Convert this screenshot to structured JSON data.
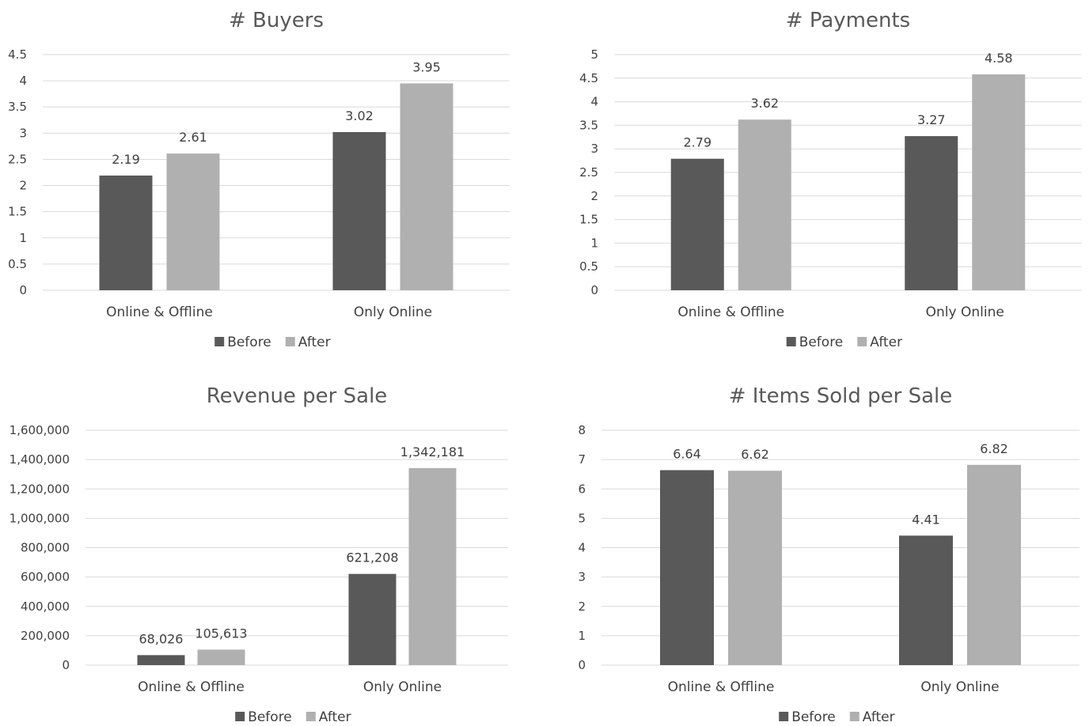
{
  "colors": {
    "before": "#595959",
    "after": "#b0b0b0",
    "grid": "#d9d9d9"
  },
  "chart_data": [
    {
      "type": "bar",
      "title": "# Buyers",
      "categories": [
        "Online & Offline",
        "Only Online"
      ],
      "series": [
        {
          "name": "Before",
          "values": [
            2.19,
            3.02
          ]
        },
        {
          "name": "After",
          "values": [
            2.61,
            3.95
          ]
        }
      ],
      "data_labels": [
        [
          "2.19",
          "3.02"
        ],
        [
          "2.61",
          "3.95"
        ]
      ],
      "ylim": [
        0,
        4.5
      ],
      "yticks": [
        "0",
        "0.5",
        "1",
        "1.5",
        "2",
        "2.5",
        "3",
        "3.5",
        "4",
        "4.5"
      ],
      "grid": true,
      "legend": "bottom"
    },
    {
      "type": "bar",
      "title": "# Payments",
      "categories": [
        "Online & Offline",
        "Only Online"
      ],
      "series": [
        {
          "name": "Before",
          "values": [
            2.79,
            3.27
          ]
        },
        {
          "name": "After",
          "values": [
            3.62,
            4.58
          ]
        }
      ],
      "data_labels": [
        [
          "2.79",
          "3.27"
        ],
        [
          "3.62",
          "4.58"
        ]
      ],
      "ylim": [
        0,
        5
      ],
      "yticks": [
        "0",
        "0.5",
        "1",
        "1.5",
        "2",
        "2.5",
        "3",
        "3.5",
        "4",
        "4.5",
        "5"
      ],
      "grid": true,
      "legend": "bottom"
    },
    {
      "type": "bar",
      "title": "Revenue per Sale",
      "categories": [
        "Online & Offline",
        "Only Online"
      ],
      "series": [
        {
          "name": "Before",
          "values": [
            68026,
            621208
          ]
        },
        {
          "name": "After",
          "values": [
            105613,
            1342181
          ]
        }
      ],
      "data_labels": [
        [
          "68,026",
          "621,208"
        ],
        [
          "105,613",
          "1,342,181"
        ]
      ],
      "ylim": [
        0,
        1600000
      ],
      "yticks": [
        "0",
        "200,000",
        "400,000",
        "600,000",
        "800,000",
        "1,000,000",
        "1,200,000",
        "1,400,000",
        "1,600,000"
      ],
      "grid": true,
      "legend": "bottom"
    },
    {
      "type": "bar",
      "title": "# Items Sold per Sale",
      "categories": [
        "Online & Offline",
        "Only Online"
      ],
      "series": [
        {
          "name": "Before",
          "values": [
            6.64,
            4.41
          ]
        },
        {
          "name": "After",
          "values": [
            6.62,
            6.82
          ]
        }
      ],
      "data_labels": [
        [
          "6.64",
          "4.41"
        ],
        [
          "6.62",
          "6.82"
        ]
      ],
      "ylim": [
        0,
        8
      ],
      "yticks": [
        "0",
        "1",
        "2",
        "3",
        "4",
        "5",
        "6",
        "7",
        "8"
      ],
      "grid": true,
      "legend": "bottom"
    }
  ]
}
